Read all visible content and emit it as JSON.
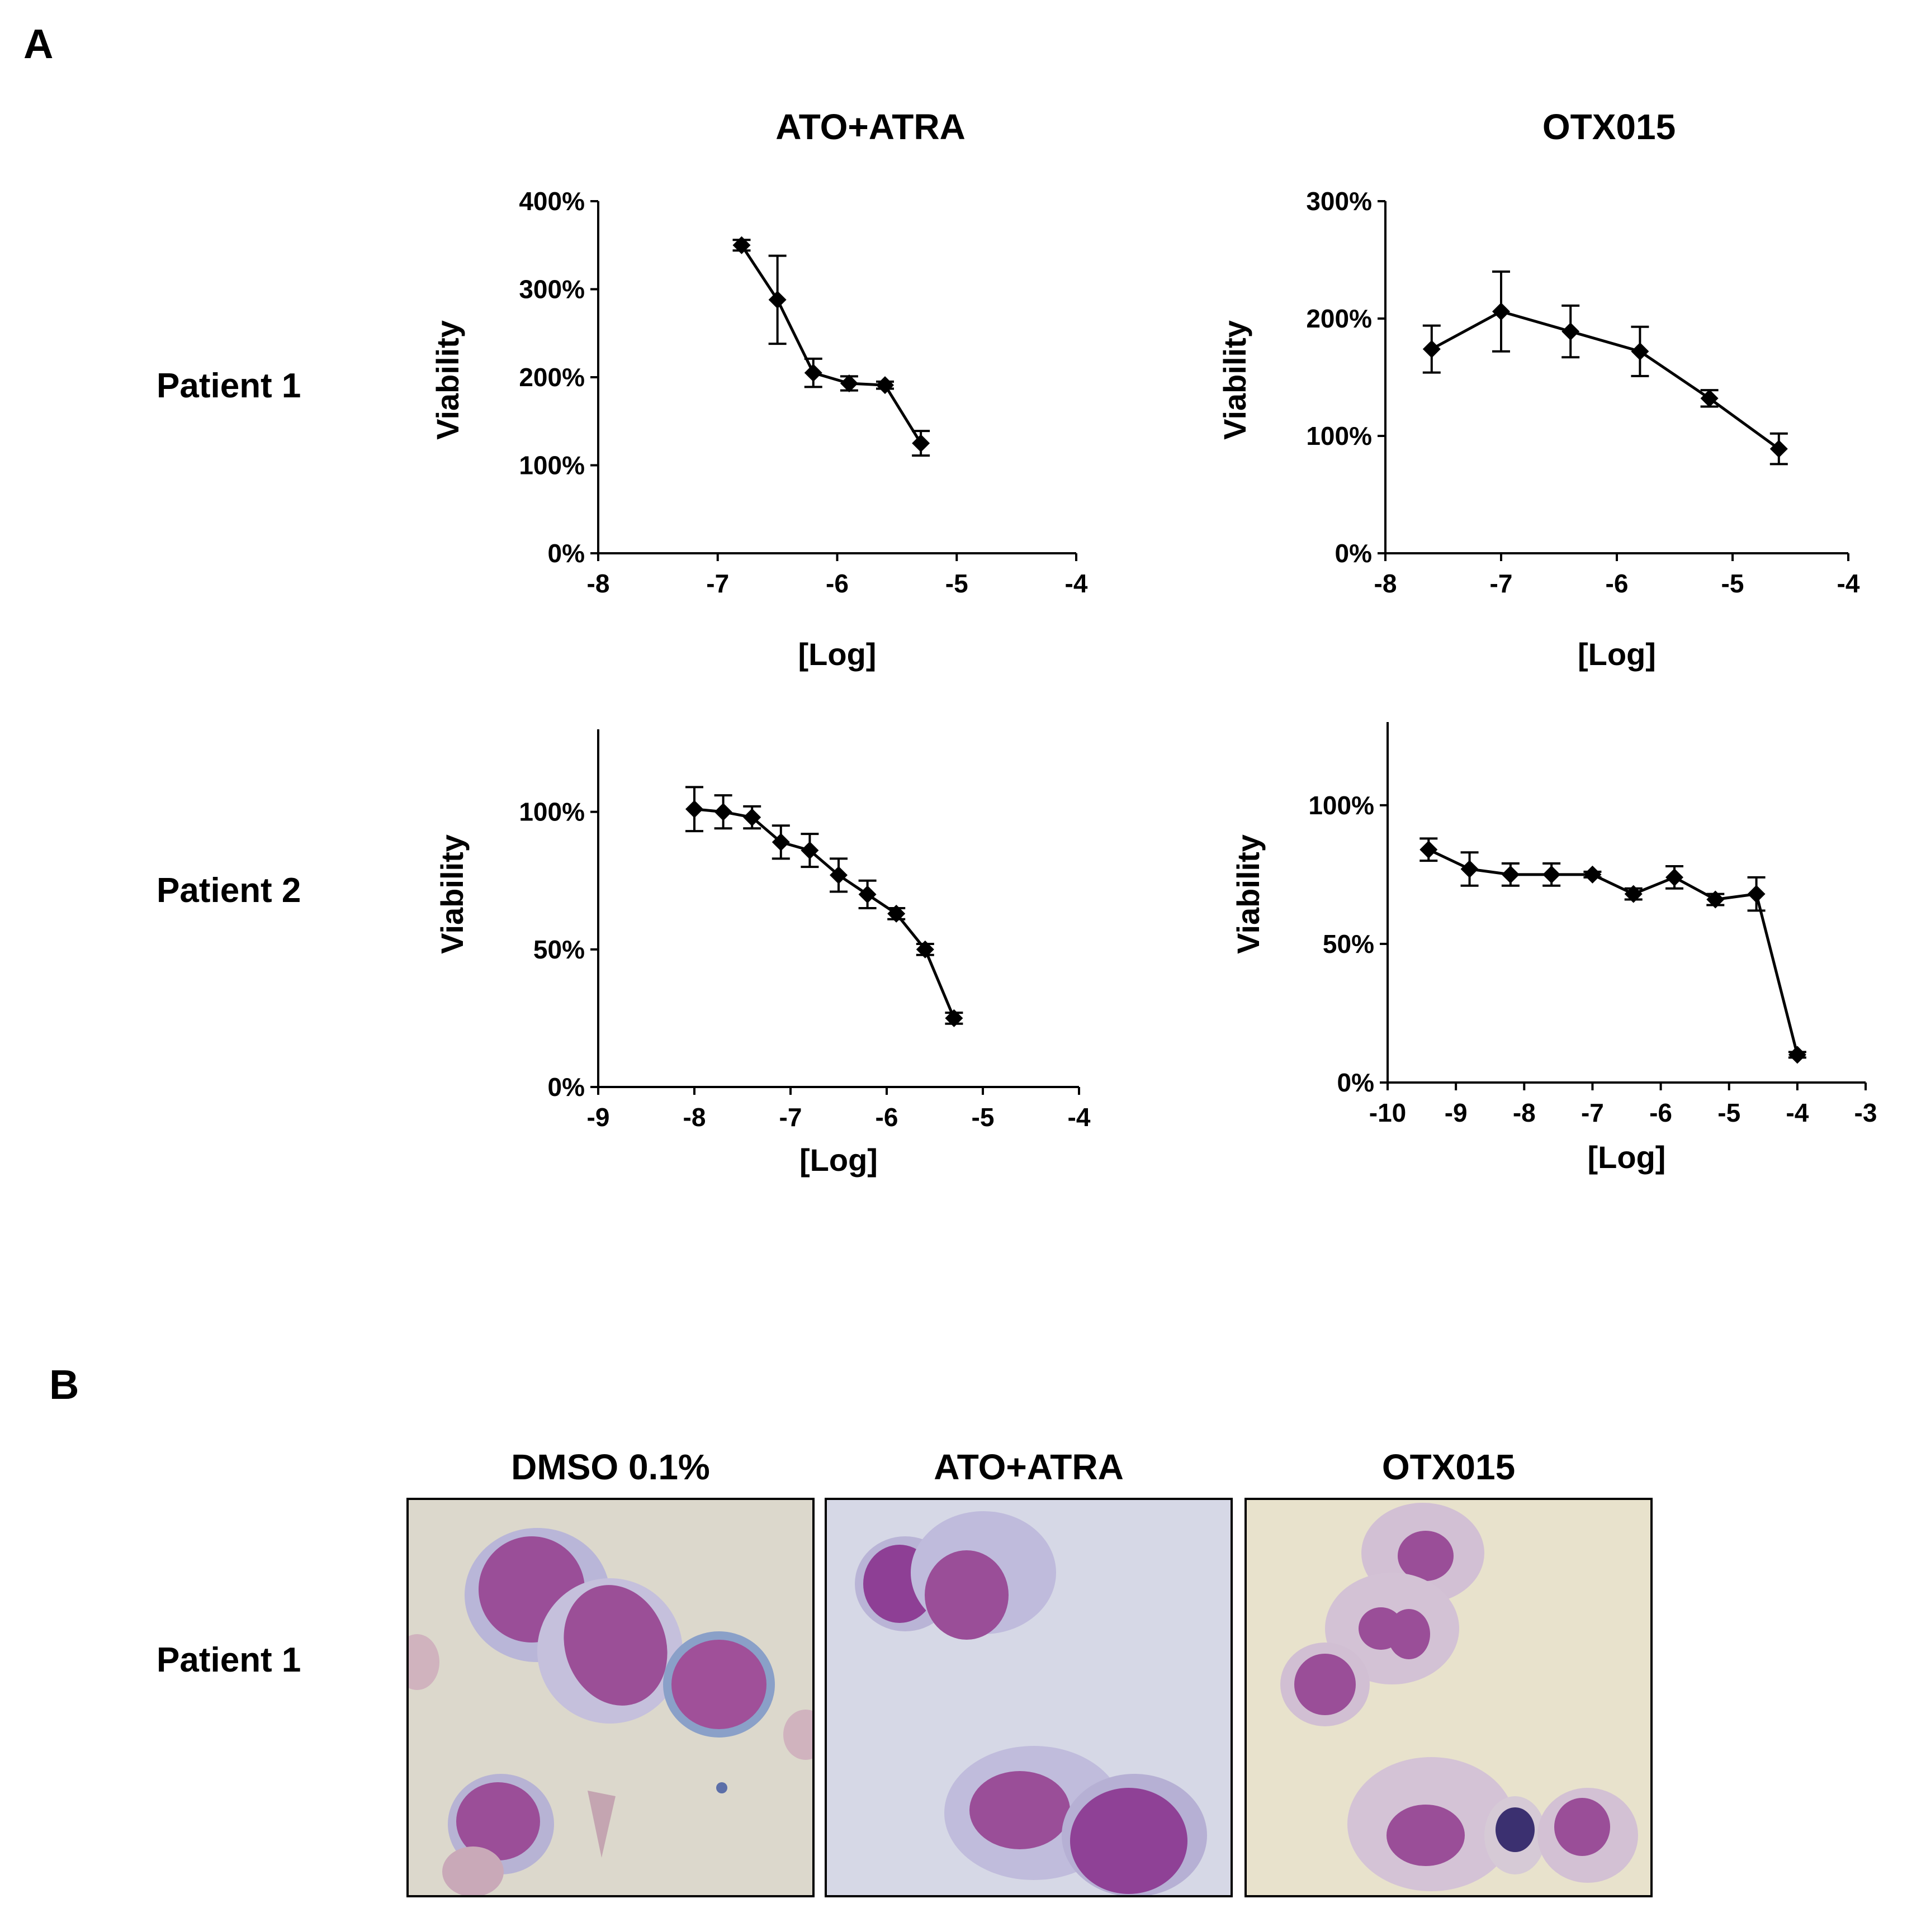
{
  "panel_a": {
    "letter": "A"
  },
  "panel_b": {
    "letter": "B"
  },
  "columns": {
    "ato_atra": "ATO+ATRA",
    "otx015": "OTX015"
  },
  "rows": {
    "patient1": "Patient 1",
    "patient2": "Patient 2"
  },
  "micrographs": {
    "patient_label": "Patient 1",
    "titles": [
      "DMSO 0.1%",
      "ATO+ATRA",
      "OTX015"
    ],
    "colors": {
      "cell_nucleus": "#9a4e98",
      "cell_cytoplasm": "#b8b3d6",
      "bg_dmso": "#dcd8cc",
      "bg_ato": "#d6d8e6",
      "bg_otx": "#e8e2cc"
    }
  },
  "chart_data": [
    {
      "id": "p1-ato-atra",
      "type": "line",
      "title": "ATO+ATRA",
      "xlabel": "[Log]",
      "ylabel": "Viability",
      "xlim": [
        -8,
        -4
      ],
      "ylim": [
        0,
        400
      ],
      "xticks": [
        -8,
        -7,
        -6,
        -5,
        -4
      ],
      "xtick_labels": [
        "-8",
        "-7",
        "-6",
        "-5",
        "-4"
      ],
      "yticks": [
        0,
        100,
        200,
        300,
        400
      ],
      "ytick_labels": [
        "0%",
        "100%",
        "200%",
        "300%",
        "400%"
      ],
      "x": [
        -6.8,
        -6.5,
        -6.2,
        -5.9,
        -5.6,
        -5.3
      ],
      "y": [
        350,
        288,
        205,
        193,
        191,
        125
      ],
      "err": [
        6,
        50,
        16,
        8,
        4,
        14
      ]
    },
    {
      "id": "p1-otx015",
      "type": "line",
      "title": "OTX015",
      "xlabel": "[Log]",
      "ylabel": "Viability",
      "xlim": [
        -8,
        -4
      ],
      "ylim": [
        0,
        300
      ],
      "xticks": [
        -8,
        -7,
        -6,
        -5,
        -4
      ],
      "xtick_labels": [
        "-8",
        "-7",
        "-6",
        "-5",
        "-4"
      ],
      "yticks": [
        0,
        100,
        200,
        300
      ],
      "ytick_labels": [
        "0%",
        "100%",
        "200%",
        "300%"
      ],
      "x": [
        -7.6,
        -7.0,
        -6.4,
        -5.8,
        -5.2,
        -4.6
      ],
      "y": [
        174,
        206,
        189,
        172,
        132,
        89
      ],
      "err": [
        20,
        34,
        22,
        21,
        7,
        13
      ]
    },
    {
      "id": "p2-ato-atra",
      "type": "line",
      "xlabel": "[Log]",
      "ylabel": "Viability",
      "xlim": [
        -9,
        -4
      ],
      "ylim": [
        0,
        130
      ],
      "xticks": [
        -9,
        -8,
        -7,
        -6,
        -5,
        -4
      ],
      "xtick_labels": [
        "-9",
        "-8",
        "-7",
        "-6",
        "-5",
        "-4"
      ],
      "yticks": [
        0,
        50,
        100
      ],
      "ytick_labels": [
        "0%",
        "50%",
        "100%"
      ],
      "x": [
        -8.0,
        -7.7,
        -7.4,
        -7.1,
        -6.8,
        -6.5,
        -6.2,
        -5.9,
        -5.6,
        -5.3
      ],
      "y": [
        101,
        100,
        98,
        89,
        86,
        77,
        70,
        63,
        50,
        25
      ],
      "err": [
        8,
        6,
        4,
        6,
        6,
        6,
        5,
        2,
        2,
        2
      ]
    },
    {
      "id": "p2-otx015",
      "type": "line",
      "xlabel": "[Log]",
      "ylabel": "Viability",
      "xlim": [
        -10,
        -3
      ],
      "ylim": [
        0,
        130
      ],
      "xticks": [
        -10,
        -9,
        -8,
        -7,
        -6,
        -5,
        -4,
        -3
      ],
      "xtick_labels": [
        "-10",
        "-9",
        "-8",
        "-7",
        "-6",
        "-5",
        "-4",
        "-3"
      ],
      "yticks": [
        0,
        50,
        100
      ],
      "ytick_labels": [
        "0%",
        "50%",
        "100%"
      ],
      "x": [
        -9.4,
        -8.8,
        -8.2,
        -7.6,
        -7.0,
        -6.4,
        -5.8,
        -5.2,
        -4.6,
        -4.0
      ],
      "y": [
        84,
        77,
        75,
        75,
        75,
        68,
        74,
        66,
        68,
        10
      ],
      "err": [
        4,
        6,
        4,
        4,
        1,
        2,
        4,
        2,
        6,
        1
      ]
    }
  ]
}
